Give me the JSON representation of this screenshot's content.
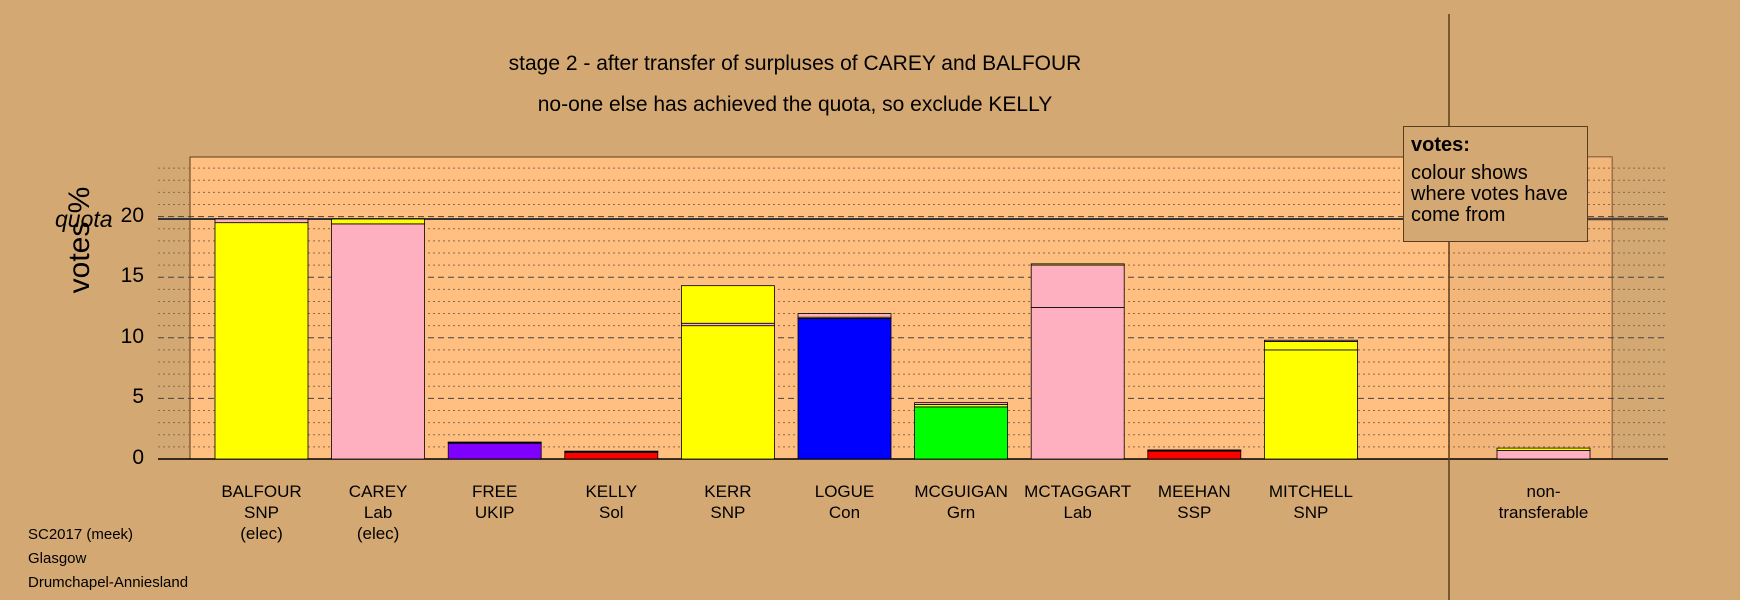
{
  "titles": {
    "line1": "stage 2 - after transfer of surpluses of CAREY and BALFOUR",
    "line2": "no-one else has achieved the quota, so exclude KELLY"
  },
  "legend": {
    "title": "votes:",
    "text": "colour shows where votes have come from"
  },
  "footer": {
    "line1": "SC2017 (meek)",
    "line2": "Glasgow",
    "line3": "Drumchapel-Anniesland"
  },
  "colors": {
    "background": "#d4a873",
    "plot_area": "#ffbf80",
    "SNP": "#ffff00",
    "Lab": "#ffb0c0",
    "UKIP": "#8000ff",
    "Sol": "#ff0000",
    "Con": "#0000ff",
    "Grn": "#00ff00",
    "SSP": "#ff0000"
  },
  "chart_data": {
    "type": "bar",
    "stacked": true,
    "ylabel": "votes %",
    "quota_label": "quota",
    "quota": 19.8,
    "ylim": [
      0,
      25
    ],
    "yticks": [
      0,
      5,
      10,
      15,
      20
    ],
    "grid": true,
    "legend_position": "top-right",
    "categories": [
      {
        "name": "BALFOUR",
        "party": "SNP",
        "note": "(elec)"
      },
      {
        "name": "CAREY",
        "party": "Lab",
        "note": "(elec)"
      },
      {
        "name": "FREE",
        "party": "UKIP",
        "note": ""
      },
      {
        "name": "KELLY",
        "party": "Sol",
        "note": ""
      },
      {
        "name": "KERR",
        "party": "SNP",
        "note": ""
      },
      {
        "name": "LOGUE",
        "party": "Con",
        "note": ""
      },
      {
        "name": "MCGUIGAN",
        "party": "Grn",
        "note": ""
      },
      {
        "name": "MCTAGGART",
        "party": "Lab",
        "note": ""
      },
      {
        "name": "MEEHAN",
        "party": "SSP",
        "note": ""
      },
      {
        "name": "MITCHELL",
        "party": "SNP",
        "note": ""
      }
    ],
    "bars": [
      {
        "segments": [
          {
            "from": "SNP",
            "value": 19.5
          },
          {
            "from": "Lab",
            "value": 0.3
          }
        ]
      },
      {
        "segments": [
          {
            "from": "Lab",
            "value": 19.4
          },
          {
            "from": "SNP",
            "value": 0.4
          }
        ]
      },
      {
        "segments": [
          {
            "from": "UKIP",
            "value": 1.3
          },
          {
            "from": "SNP",
            "value": 0.05
          },
          {
            "from": "Lab",
            "value": 0.05
          }
        ]
      },
      {
        "segments": [
          {
            "from": "Sol",
            "value": 0.55
          },
          {
            "from": "SNP",
            "value": 0.05
          },
          {
            "from": "Lab",
            "value": 0.05
          }
        ]
      },
      {
        "segments": [
          {
            "from": "SNP",
            "value": 11.0
          },
          {
            "from": "Lab",
            "value": 0.2
          },
          {
            "from": "SNP",
            "value": 3.1
          }
        ]
      },
      {
        "segments": [
          {
            "from": "Con",
            "value": 11.6
          },
          {
            "from": "SNP",
            "value": 0.1
          },
          {
            "from": "Lab",
            "value": 0.3
          }
        ]
      },
      {
        "segments": [
          {
            "from": "Grn",
            "value": 4.3
          },
          {
            "from": "SNP",
            "value": 0.2
          },
          {
            "from": "Lab",
            "value": 0.15
          }
        ]
      },
      {
        "segments": [
          {
            "from": "Lab",
            "value": 12.5
          },
          {
            "from": "Lab",
            "value": 3.5
          },
          {
            "from": "SNP",
            "value": 0.1
          }
        ]
      },
      {
        "segments": [
          {
            "from": "SSP",
            "value": 0.65
          },
          {
            "from": "SNP",
            "value": 0.05
          },
          {
            "from": "Lab",
            "value": 0.05
          }
        ]
      },
      {
        "segments": [
          {
            "from": "SNP",
            "value": 9.0
          },
          {
            "from": "SNP",
            "value": 0.7
          },
          {
            "from": "Lab",
            "value": 0.1
          }
        ]
      }
    ],
    "non_transferable": {
      "label_line1": "non-",
      "label_line2": "transferable",
      "segments": [
        {
          "from": "Lab",
          "value": 0.7
        },
        {
          "from": "SNP",
          "value": 0.2
        }
      ]
    }
  }
}
